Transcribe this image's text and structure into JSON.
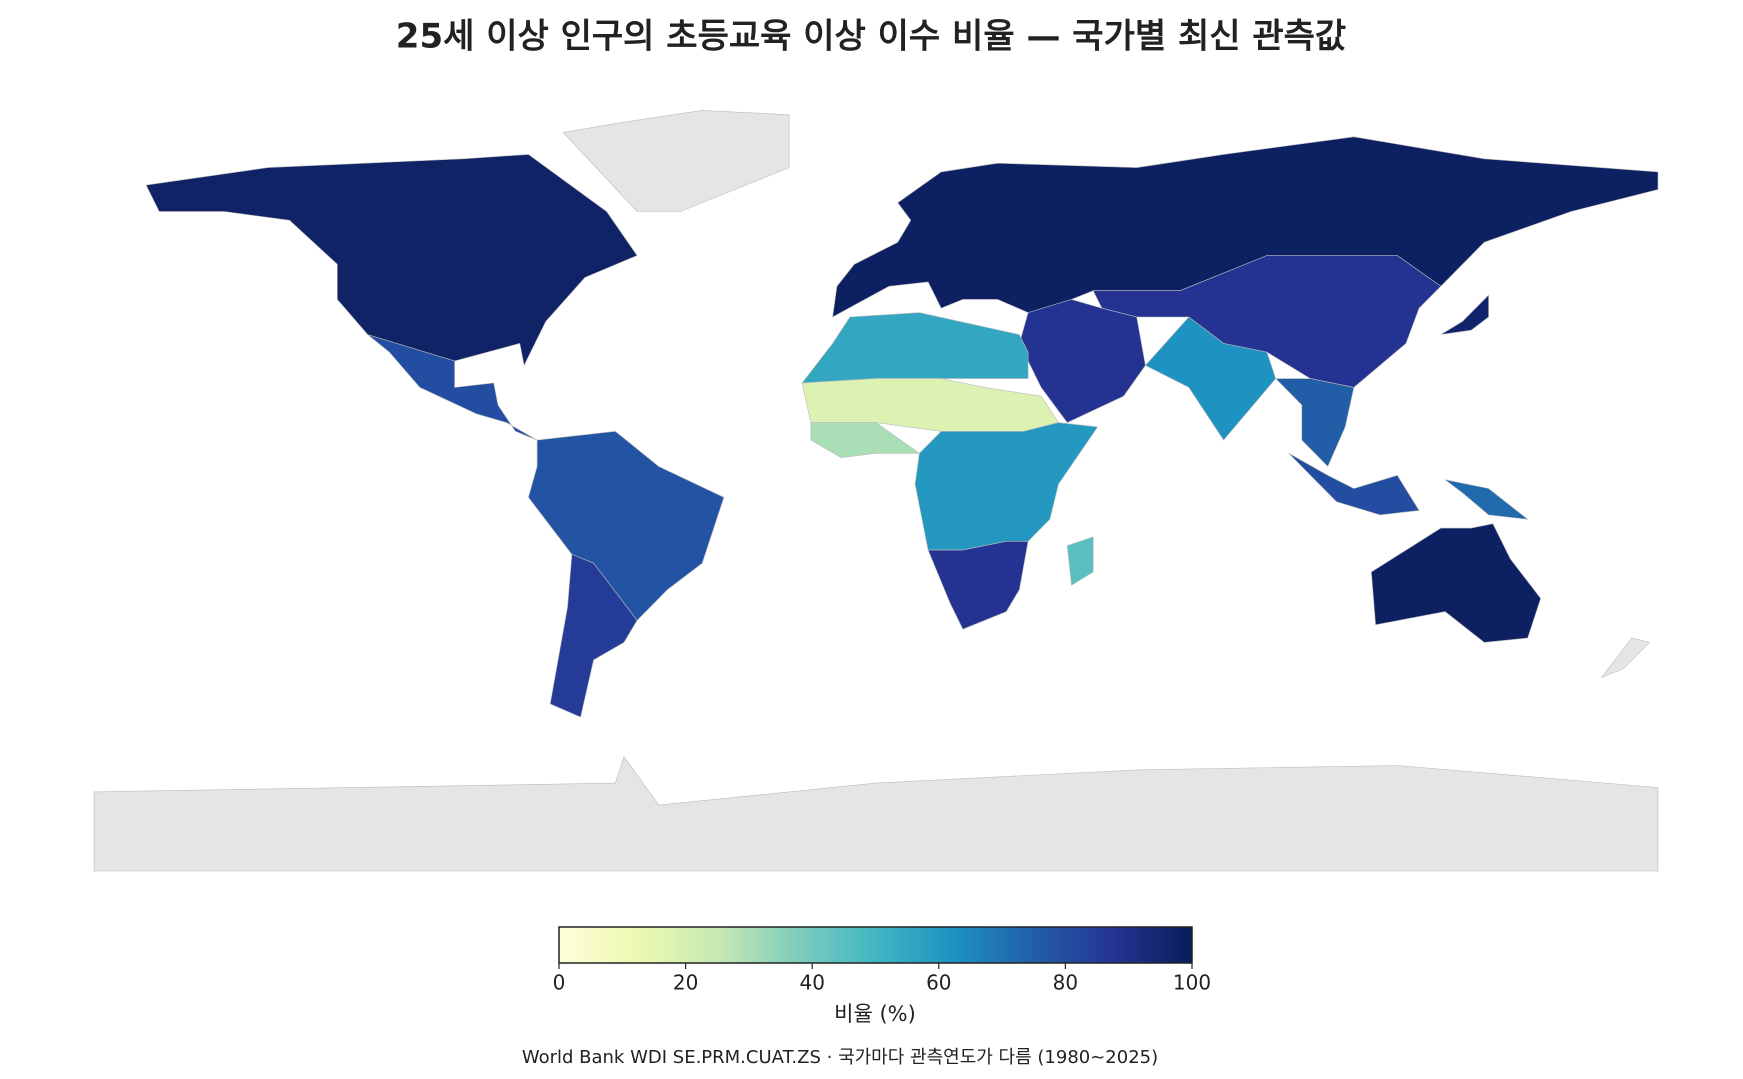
{
  "chart_data": {
    "type": "choropleth",
    "title": "25세 이상 인구의 초등교육 이상 이수 비율 — 국가별 최신 관측값",
    "values": [
      97,
      null,
      80,
      78,
      85,
      98,
      88,
      88,
      62,
      75,
      80,
      55,
      18,
      30,
      60,
      88,
      45,
      98,
      72,
      96,
      null,
      null
    ],
    "missing_color": "#e5e5e5",
    "colorscale": [
      "#ffffd9",
      "#edf8b1",
      "#c7e9b4",
      "#7fcdbb",
      "#41b6c4",
      "#1d91c0",
      "#225ea8",
      "#253494",
      "#081d58"
    ],
    "clim": [
      0,
      100
    ],
    "cticks": [
      0,
      20,
      40,
      60,
      80,
      100
    ],
    "colorbar_title": "비율 (%)",
    "source": "World Bank WDI SE.PRM.CUAT.ZS · 국가마다 관측연도가 다름 (1980~2025)"
  }
}
